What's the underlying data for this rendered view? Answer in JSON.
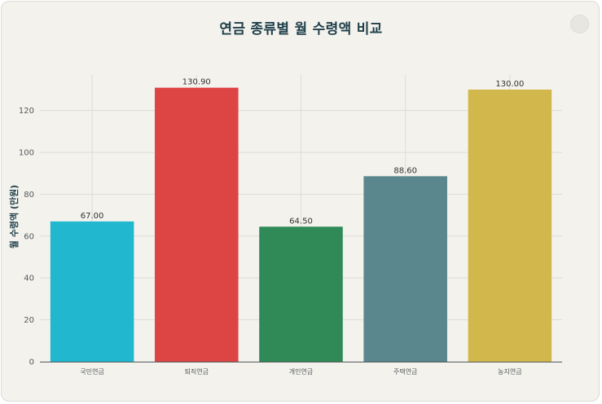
{
  "chart_data": {
    "type": "bar",
    "title": "연금 종류별 월 수령액 비교",
    "xlabel": "",
    "ylabel": "월 수령액 (만원)",
    "categories": [
      "국민연금",
      "퇴직연금",
      "개인연금",
      "주택연금",
      "농지연금"
    ],
    "values": [
      67.0,
      130.9,
      64.5,
      88.6,
      130.0
    ],
    "value_labels": [
      "67.00",
      "130.90",
      "64.50",
      "88.60",
      "130.00"
    ],
    "colors": [
      "#21b8cf",
      "#dd4545",
      "#2f8a58",
      "#5a878d",
      "#d2b84c"
    ],
    "ylim": [
      0,
      137
    ],
    "yticks": [
      0,
      20,
      40,
      60,
      80,
      100,
      120
    ],
    "grid": true,
    "legend": "none"
  }
}
